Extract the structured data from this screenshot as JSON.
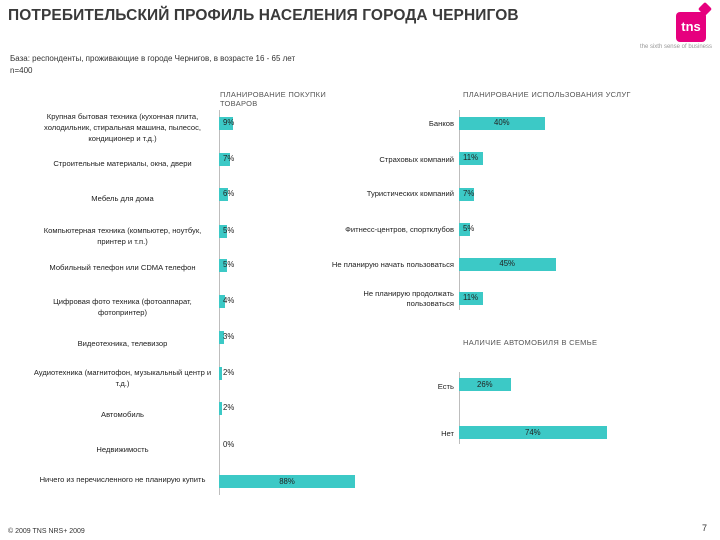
{
  "header": {
    "title": "ПОТРЕБИТЕЛЬСКИЙ ПРОФИЛЬ НАСЕЛЕНИЯ ГОРОДА ЧЕРНИГОВ",
    "logo_text": "tns",
    "tagline": "the sixth sense of business"
  },
  "base_note": "База: респонденты, проживающие в городе Чернигов, в возрасте 16 - 65 лет",
  "sample_note": "n=400",
  "colors": {
    "bar": "#3cc9c6",
    "brand": "#e6007e"
  },
  "chart_data": [
    {
      "type": "bar",
      "orientation": "horizontal",
      "title": "ПЛАНИРОВАНИЕ ПОКУПКИ ТОВАРОВ",
      "unit": "%",
      "xlim": [
        0,
        100
      ],
      "categories": [
        "Крупная бытовая техника (кухонная плита, холодильник, стиральная машина, пылесос, кондиционер и т.д.)",
        "Строительные материалы, окна, двери",
        "Мебель для дома",
        "Компьютерная техника (компьютер, ноутбук, принтер и т.п.)",
        "Мобильный телефон или CDMA телефон",
        "Цифровая фото техника (фотоаппарат, фотопринтер)",
        "Видеотехника, телевизор",
        "Аудиотехника (магнитофон, музыкальный центр и т.д.)",
        "Автомобиль",
        "Недвижимость",
        "Ничего из перечисленного не планирую купить"
      ],
      "values": [
        9,
        7,
        6,
        5,
        5,
        4,
        3,
        2,
        2,
        0,
        88
      ],
      "labels": [
        "9%",
        "7%",
        "6%",
        "5%",
        "5%",
        "4%",
        "3%",
        "2%",
        "2%",
        "0%",
        "88%"
      ]
    },
    {
      "type": "bar",
      "orientation": "horizontal",
      "title": "ПЛАНИРОВАНИЕ ИСПОЛЬЗОВАНИЯ УСЛУГ",
      "unit": "%",
      "xlim": [
        0,
        100
      ],
      "categories": [
        "Банков",
        "Страховых компаний",
        "Туристических компаний",
        "Фитнесс-центров, спортклубов",
        "Не планирую начать пользоваться",
        "Не планирую продолжать пользоваться"
      ],
      "values": [
        40,
        11,
        7,
        5,
        45,
        11
      ],
      "labels": [
        "40%",
        "11%",
        "7%",
        "5%",
        "45%",
        "11%"
      ]
    },
    {
      "type": "bar",
      "orientation": "horizontal",
      "title": "НАЛИЧИЕ АВТОМОБИЛЯ В СЕМЬЕ",
      "unit": "%",
      "xlim": [
        0,
        100
      ],
      "categories": [
        "Есть",
        "Нет"
      ],
      "values": [
        26,
        74
      ],
      "labels": [
        "26%",
        "74%"
      ]
    }
  ],
  "footer": {
    "copyright": "© 2009 TNS   NRS+ 2009",
    "page_number": "7"
  }
}
